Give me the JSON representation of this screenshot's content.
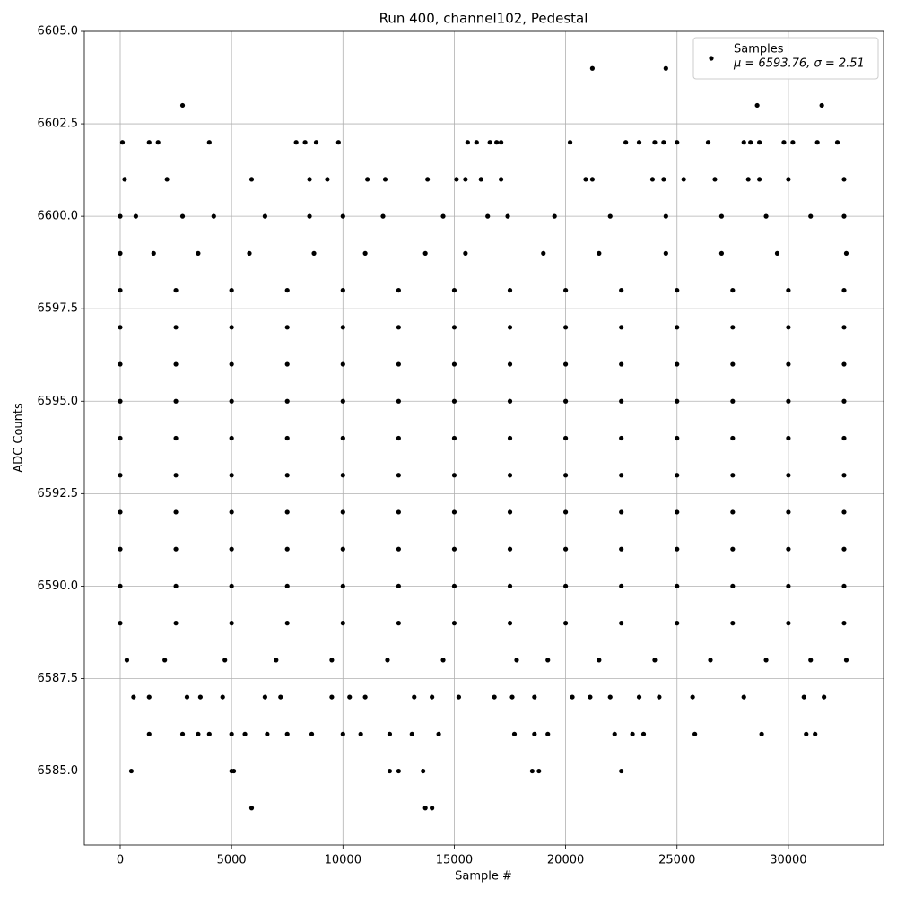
{
  "chart_data": {
    "type": "scatter",
    "title": "Run 400, channel102, Pedestal",
    "x_label": "Sample #",
    "y_label": "ADC Counts",
    "xlim": [
      -1611,
      34273
    ],
    "ylim": [
      6583.0,
      6605.0
    ],
    "xticks": [
      0,
      5000,
      10000,
      15000,
      20000,
      25000,
      30000
    ],
    "yticks": [
      {
        "value": 6585,
        "label": "6585.0"
      },
      {
        "value": 6587.5,
        "label": "6587.5"
      },
      {
        "value": 6590,
        "label": "6590.0"
      },
      {
        "value": 6592.5,
        "label": "6592.5"
      },
      {
        "value": 6595,
        "label": "6595.0"
      },
      {
        "value": 6597.5,
        "label": "6597.5"
      },
      {
        "value": 6600,
        "label": "6600.0"
      },
      {
        "value": 6602.5,
        "label": "6602.5"
      },
      {
        "value": 6605,
        "label": "6605.0"
      }
    ],
    "grid": true,
    "legend_position": "upper right",
    "legend_note": "μ = 6593.76, σ = 2.51",
    "series": [
      {
        "name": "Samples",
        "color": "#000000",
        "x": [
          0,
          2500,
          5000,
          7500,
          10000,
          12500,
          15000,
          17500,
          20000,
          22500,
          25000,
          27500,
          30000,
          32500,
          0,
          2500,
          5000,
          7500,
          10000,
          12500,
          15000,
          17500,
          20000,
          22500,
          25000,
          27500,
          30000,
          32500,
          0,
          2500,
          5000,
          7500,
          10000,
          12500,
          15000,
          17500,
          20000,
          22500,
          25000,
          27500,
          30000,
          32500,
          0,
          2500,
          5000,
          7500,
          10000,
          12500,
          15000,
          17500,
          20000,
          22500,
          25000,
          27500,
          30000,
          32500,
          0,
          2500,
          5000,
          7500,
          10000,
          12500,
          15000,
          17500,
          20000,
          22500,
          25000,
          27500,
          30000,
          32500,
          0,
          2500,
          5000,
          7500,
          10000,
          12500,
          15000,
          17500,
          20000,
          22500,
          25000,
          27500,
          30000,
          32500,
          0,
          2500,
          5000,
          7500,
          10000,
          12500,
          15000,
          17500,
          20000,
          22500,
          25000,
          27500,
          30000,
          32500,
          0,
          2500,
          5000,
          7500,
          10000,
          12500,
          15000,
          17500,
          20000,
          22500,
          25000,
          27500,
          30000,
          32500,
          0,
          2500,
          5000,
          7500,
          10000,
          12500,
          15000,
          17500,
          20000,
          22500,
          25000,
          27500,
          30000,
          32500,
          0,
          2500,
          5000,
          7500,
          10000,
          12500,
          15000,
          17500,
          20000,
          22500,
          25000,
          27500,
          30000,
          32500,
          300,
          2000,
          4700,
          7000,
          9500,
          12000,
          14500,
          17800,
          19200,
          21500,
          24000,
          26500,
          29000,
          31000,
          32600,
          0,
          1500,
          3500,
          5800,
          8700,
          11000,
          13700,
          15500,
          19000,
          21500,
          24500,
          27000,
          29500,
          32600,
          0,
          700,
          2800,
          4200,
          6500,
          8500,
          10000,
          11800,
          14500,
          16500,
          17400,
          19500,
          22000,
          24500,
          27000,
          29000,
          31000,
          32500,
          600,
          1300,
          3000,
          3600,
          4600,
          6500,
          7200,
          9500,
          10300,
          11000,
          13200,
          14000,
          15200,
          16800,
          17600,
          18600,
          20300,
          21100,
          22000,
          23300,
          24200,
          25700,
          28000,
          30700,
          31600,
          1300,
          2800,
          3500,
          4000,
          5000,
          5600,
          6600,
          7500,
          8600,
          10000,
          10800,
          12100,
          13100,
          14300,
          17700,
          18600,
          19200,
          22200,
          23000,
          23500,
          25800,
          28800,
          30800,
          31200,
          500,
          5000,
          5100,
          12100,
          12500,
          13600,
          18500,
          18800,
          22500,
          5900,
          13700,
          14000,
          200,
          2100,
          5900,
          8500,
          9300,
          11100,
          11900,
          13800,
          15100,
          15500,
          16200,
          17100,
          20900,
          21200,
          23900,
          24400,
          25300,
          26700,
          28200,
          28700,
          30000,
          32500,
          100,
          1300,
          1700,
          4000,
          7900,
          8300,
          8800,
          9800,
          15600,
          16000,
          16600,
          16900,
          17100,
          20200,
          22700,
          23300,
          24000,
          24400,
          25000,
          26400,
          28000,
          28300,
          28700,
          29800,
          30200,
          31300,
          32200,
          2800,
          28600,
          31500,
          21200,
          24500
        ],
        "values": [
          6589,
          6589,
          6589,
          6589,
          6589,
          6589,
          6589,
          6589,
          6589,
          6589,
          6589,
          6589,
          6589,
          6589,
          6590,
          6590,
          6590,
          6590,
          6590,
          6590,
          6590,
          6590,
          6590,
          6590,
          6590,
          6590,
          6590,
          6590,
          6591,
          6591,
          6591,
          6591,
          6591,
          6591,
          6591,
          6591,
          6591,
          6591,
          6591,
          6591,
          6591,
          6591,
          6592,
          6592,
          6592,
          6592,
          6592,
          6592,
          6592,
          6592,
          6592,
          6592,
          6592,
          6592,
          6592,
          6592,
          6593,
          6593,
          6593,
          6593,
          6593,
          6593,
          6593,
          6593,
          6593,
          6593,
          6593,
          6593,
          6593,
          6593,
          6594,
          6594,
          6594,
          6594,
          6594,
          6594,
          6594,
          6594,
          6594,
          6594,
          6594,
          6594,
          6594,
          6594,
          6595,
          6595,
          6595,
          6595,
          6595,
          6595,
          6595,
          6595,
          6595,
          6595,
          6595,
          6595,
          6595,
          6595,
          6596,
          6596,
          6596,
          6596,
          6596,
          6596,
          6596,
          6596,
          6596,
          6596,
          6596,
          6596,
          6596,
          6596,
          6597,
          6597,
          6597,
          6597,
          6597,
          6597,
          6597,
          6597,
          6597,
          6597,
          6597,
          6597,
          6597,
          6597,
          6598,
          6598,
          6598,
          6598,
          6598,
          6598,
          6598,
          6598,
          6598,
          6598,
          6598,
          6598,
          6598,
          6598,
          6588,
          6588,
          6588,
          6588,
          6588,
          6588,
          6588,
          6588,
          6588,
          6588,
          6588,
          6588,
          6588,
          6588,
          6588,
          6599,
          6599,
          6599,
          6599,
          6599,
          6599,
          6599,
          6599,
          6599,
          6599,
          6599,
          6599,
          6599,
          6599,
          6600,
          6600,
          6600,
          6600,
          6600,
          6600,
          6600,
          6600,
          6600,
          6600,
          6600,
          6600,
          6600,
          6600,
          6600,
          6600,
          6600,
          6600,
          6587,
          6587,
          6587,
          6587,
          6587,
          6587,
          6587,
          6587,
          6587,
          6587,
          6587,
          6587,
          6587,
          6587,
          6587,
          6587,
          6587,
          6587,
          6587,
          6587,
          6587,
          6587,
          6587,
          6587,
          6587,
          6586,
          6586,
          6586,
          6586,
          6586,
          6586,
          6586,
          6586,
          6586,
          6586,
          6586,
          6586,
          6586,
          6586,
          6586,
          6586,
          6586,
          6586,
          6586,
          6586,
          6586,
          6586,
          6586,
          6586,
          6585,
          6585,
          6585,
          6585,
          6585,
          6585,
          6585,
          6585,
          6585,
          6584,
          6584,
          6584,
          6601,
          6601,
          6601,
          6601,
          6601,
          6601,
          6601,
          6601,
          6601,
          6601,
          6601,
          6601,
          6601,
          6601,
          6601,
          6601,
          6601,
          6601,
          6601,
          6601,
          6601,
          6601,
          6602,
          6602,
          6602,
          6602,
          6602,
          6602,
          6602,
          6602,
          6602,
          6602,
          6602,
          6602,
          6602,
          6602,
          6602,
          6602,
          6602,
          6602,
          6602,
          6602,
          6602,
          6602,
          6602,
          6602,
          6602,
          6602,
          6602,
          6603,
          6603,
          6603,
          6604,
          6604
        ]
      }
    ]
  }
}
